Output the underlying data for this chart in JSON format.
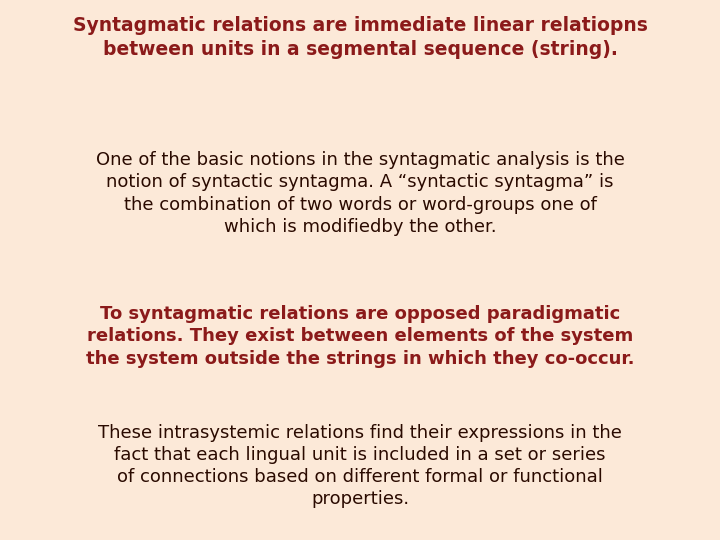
{
  "background_color": "#fce9d8",
  "title_text": "Syntagmatic relations are immediate linear relatiopns\nbetween units in a segmental sequence (string).",
  "title_color": "#8b1a1a",
  "title_fontsize": 13.5,
  "para1_text": "One of the basic notions in the syntagmatic analysis is the\nnotion of syntactic syntagma. A “syntactic syntagma” is\nthe combination of two words or word-groups one of\nwhich is modifiedby the other.",
  "para1_color": "#2a0a00",
  "para1_fontsize": 13.0,
  "para2_text": "To syntagmatic relations are opposed paradigmatic\nrelations. They exist between elements of the system\nthe system outside the strings in which they co-occur.",
  "para2_color": "#8b1a1a",
  "para2_fontsize": 13.0,
  "para3_text": "These intrasystemic relations find their expressions in the\nfact that each lingual unit is included in a set or series\nof connections based on different formal or functional\nproperties.",
  "para3_color": "#2a0a00",
  "para3_fontsize": 13.0,
  "fig_width": 7.2,
  "fig_height": 5.4,
  "dpi": 100
}
